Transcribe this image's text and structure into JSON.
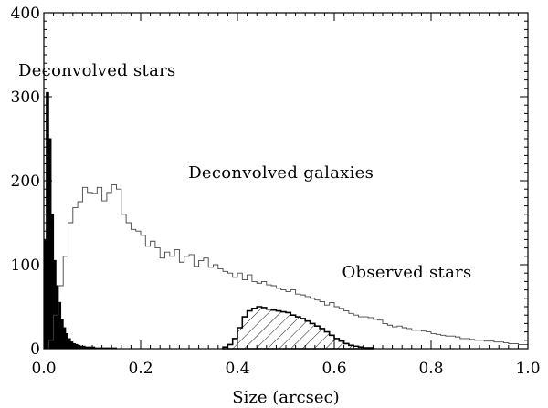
{
  "chart_data": {
    "type": "histogram",
    "xlabel": "Size (arcsec)",
    "ylabel": "",
    "xlim": [
      0.0,
      1.0
    ],
    "ylim": [
      0,
      400
    ],
    "grid": false,
    "bin_width": 0.005,
    "x_ticks": [
      "0.0",
      "0.2",
      "0.4",
      "0.6",
      "0.8",
      "1.0"
    ],
    "y_ticks": [
      "0",
      "100",
      "200",
      "300",
      "400"
    ],
    "annotations": [
      {
        "text": "Deconvolved stars",
        "x": 0.11,
        "y": 325
      },
      {
        "text": "Deconvolved galaxies",
        "x": 0.49,
        "y": 203
      },
      {
        "text": "Observed stars",
        "x": 0.75,
        "y": 85
      }
    ],
    "series": [
      {
        "name": "Deconvolved stars",
        "style": "filled",
        "x_start": 0.0,
        "bin_width": 0.005,
        "values": [
          130,
          305,
          250,
          160,
          105,
          75,
          55,
          35,
          25,
          18,
          12,
          8,
          6,
          5,
          4,
          3,
          3,
          2,
          2,
          2,
          2,
          1,
          1,
          1,
          1,
          1,
          1,
          1,
          1,
          1
        ]
      },
      {
        "name": "Deconvolved galaxies",
        "style": "step",
        "x_start": 0.0,
        "bin_width": 0.01,
        "values": [
          0,
          10,
          40,
          75,
          110,
          150,
          168,
          175,
          192,
          186,
          185,
          192,
          176,
          186,
          195,
          190,
          160,
          150,
          142,
          140,
          135,
          122,
          128,
          120,
          108,
          115,
          110,
          118,
          103,
          110,
          112,
          98,
          105,
          108,
          97,
          100,
          95,
          92,
          90,
          85,
          90,
          82,
          88,
          80,
          78,
          80,
          76,
          75,
          72,
          70,
          68,
          70,
          65,
          64,
          62,
          60,
          58,
          56,
          52,
          55,
          50,
          48,
          45,
          42,
          40,
          38,
          38,
          37,
          35,
          34,
          30,
          28,
          26,
          27,
          25,
          24,
          22,
          22,
          21,
          20,
          18,
          17,
          16,
          15,
          15,
          14,
          12,
          12,
          11,
          10,
          10,
          9,
          9,
          8,
          8,
          7,
          6,
          6,
          5,
          5
        ]
      },
      {
        "name": "Observed stars",
        "style": "hatched",
        "x_start": 0.37,
        "bin_width": 0.01,
        "values": [
          2,
          5,
          12,
          25,
          38,
          45,
          48,
          50,
          49,
          47,
          46,
          45,
          44,
          43,
          40,
          38,
          36,
          33,
          30,
          27,
          24,
          20,
          16,
          12,
          9,
          6,
          4,
          3,
          2,
          1,
          1
        ]
      }
    ]
  }
}
